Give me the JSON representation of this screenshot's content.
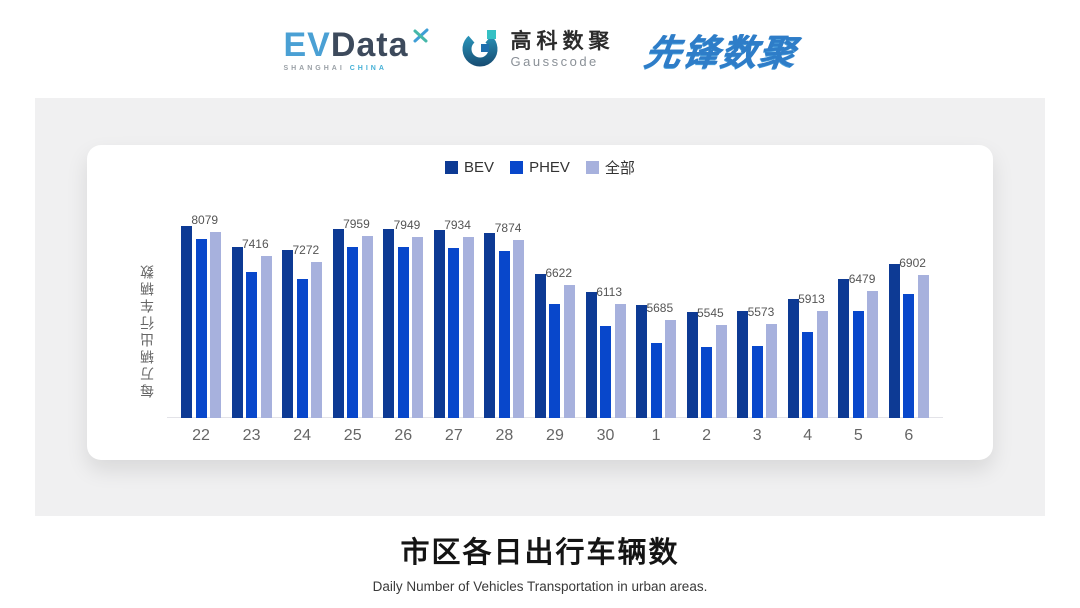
{
  "header": {
    "evdata": {
      "ev": "EV",
      "data": "Data",
      "sub_left": "SHANGHAI",
      "sub_right": "CHINA"
    },
    "gausscode": {
      "cn": "高科数聚",
      "en": "Gausscode"
    },
    "pioneer": {
      "text": "先锋数聚"
    }
  },
  "colors": {
    "bev": "#0d3a94",
    "phev": "#0847cb",
    "all": "#a7b1dd",
    "panel_bg": "#f0f0f1",
    "axis_line": "#e3e3e8"
  },
  "chart_data": {
    "type": "bar",
    "title": "市区各日出行车辆数",
    "subtitle": "Daily Number of Vehicles Transportation in urban areas.",
    "ylabel": "每万辆出行车辆数",
    "xlabel": "",
    "categories": [
      "22",
      "23",
      "24",
      "25",
      "26",
      "27",
      "28",
      "29",
      "30",
      "1",
      "2",
      "3",
      "4",
      "5",
      "6"
    ],
    "series": [
      {
        "name": "BEV",
        "color": "#0d3a94",
        "values": [
          8240,
          7670,
          7590,
          8160,
          8160,
          8130,
          8050,
          6930,
          6440,
          6090,
          5900,
          5920,
          6250,
          6800,
          7210
        ]
      },
      {
        "name": "PHEV",
        "color": "#0847cb",
        "values": [
          7890,
          6990,
          6800,
          7670,
          7670,
          7640,
          7560,
          6110,
          5510,
          5050,
          4940,
          4970,
          5350,
          5920,
          6390
        ]
      },
      {
        "name": "全部",
        "color": "#a7b1dd",
        "values": [
          8079,
          7416,
          7272,
          7959,
          7949,
          7934,
          7874,
          6622,
          6113,
          5685,
          5545,
          5573,
          5913,
          6479,
          6902
        ]
      }
    ],
    "value_labels": [
      8079,
      7416,
      7272,
      7959,
      7949,
      7934,
      7874,
      6622,
      6113,
      5685,
      5545,
      5573,
      5913,
      6479,
      6902
    ],
    "ylim": [
      3000,
      8600
    ],
    "grid": false,
    "legend_position": "top"
  }
}
